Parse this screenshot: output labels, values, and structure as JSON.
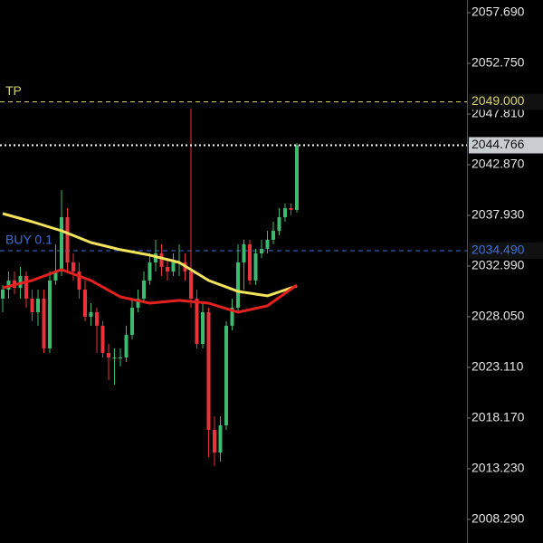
{
  "chart_data": {
    "type": "candlestick",
    "ylim": [
      2005.99,
      2058.925
    ],
    "yticks": [
      {
        "value": 2057.69,
        "label": "2057.690"
      },
      {
        "value": 2052.75,
        "label": "2052.750"
      },
      {
        "value": 2047.81,
        "label": "2047.810"
      },
      {
        "value": 2042.87,
        "label": "2042.870"
      },
      {
        "value": 2037.93,
        "label": "2037.930"
      },
      {
        "value": 2032.99,
        "label": "2032.990"
      },
      {
        "value": 2028.05,
        "label": "2028.050"
      },
      {
        "value": 2023.11,
        "label": "2023.110"
      },
      {
        "value": 2018.17,
        "label": "2018.170"
      },
      {
        "value": 2013.23,
        "label": "2013.230"
      },
      {
        "value": 2008.29,
        "label": "2008.290"
      }
    ],
    "up_color": "#3dba6f",
    "down_color": "#e8333a",
    "candles": {
      "open": [
        2029.81,
        2030.69,
        2031.58,
        2030.87,
        2032.02,
        2029.81,
        2028.49,
        2029.81,
        2024.96,
        2031.58,
        2032.46,
        2037.75,
        2033.34,
        2032.46,
        2030.69,
        2028.05,
        2028.49,
        2027.17,
        2024.52,
        2024.08,
        2024.08,
        2024.08,
        2026.28,
        2028.93,
        2029.81,
        2031.58,
        2033.34,
        2034.22,
        2032.9,
        2032.46,
        2033.34,
        2033.34,
        2032.46,
        2029.81,
        2025.4,
        2028.49,
        2017.02,
        2014.81,
        2017.46,
        2027.17,
        2028.93,
        2033.34,
        2035.11,
        2031.58,
        2034.22,
        2034.66,
        2035.55,
        2036.43,
        2037.75,
        2038.63,
        2038.46
      ],
      "high": [
        2031.14,
        2032.46,
        2032.46,
        2032.9,
        2032.46,
        2030.69,
        2030.69,
        2030.69,
        2032.46,
        2035.11,
        2040.4,
        2038.63,
        2034.22,
        2033.34,
        2031.58,
        2029.37,
        2028.93,
        2027.61,
        2025.4,
        2024.96,
        2024.96,
        2027.17,
        2029.81,
        2030.69,
        2032.46,
        2034.22,
        2035.55,
        2035.11,
        2033.78,
        2034.22,
        2035.11,
        2034.22,
        2048.34,
        2030.69,
        2029.37,
        2028.93,
        2018.34,
        2018.34,
        2027.61,
        2029.81,
        2035.11,
        2035.55,
        2035.55,
        2034.66,
        2035.55,
        2036.43,
        2037.31,
        2038.63,
        2039.08,
        2039.08,
        2044.99
      ],
      "low": [
        2028.49,
        2029.81,
        2030.25,
        2029.81,
        2028.93,
        2027.61,
        2027.17,
        2024.52,
        2024.52,
        2031.14,
        2032.02,
        2032.46,
        2031.58,
        2029.81,
        2027.61,
        2027.17,
        2024.52,
        2024.08,
        2021.87,
        2021.43,
        2023.2,
        2023.64,
        2025.84,
        2028.49,
        2029.37,
        2031.14,
        2032.46,
        2032.02,
        2031.58,
        2032.02,
        2032.02,
        2031.58,
        2028.93,
        2024.96,
        2024.96,
        2014.37,
        2013.49,
        2013.93,
        2017.02,
        2026.72,
        2028.49,
        2030.69,
        2031.14,
        2031.14,
        2033.78,
        2034.22,
        2035.11,
        2035.99,
        2037.31,
        2037.93,
        2038.19
      ],
      "close": [
        2030.69,
        2031.58,
        2030.87,
        2032.02,
        2029.81,
        2028.49,
        2029.81,
        2024.96,
        2031.58,
        2032.46,
        2037.75,
        2033.34,
        2032.46,
        2030.69,
        2028.05,
        2028.49,
        2027.17,
        2024.52,
        2024.08,
        2024.08,
        2024.08,
        2026.28,
        2028.93,
        2029.81,
        2031.58,
        2033.34,
        2034.22,
        2032.9,
        2032.46,
        2033.34,
        2033.34,
        2032.46,
        2029.81,
        2025.4,
        2028.49,
        2017.02,
        2014.81,
        2017.46,
        2027.17,
        2028.93,
        2033.34,
        2035.11,
        2031.58,
        2034.22,
        2034.66,
        2035.55,
        2036.43,
        2037.75,
        2038.63,
        2038.46,
        2044.77
      ]
    },
    "series": [
      {
        "color": "#f2e35a",
        "values": [
          2038.1,
          2037.31,
          2036.43,
          2035.28,
          2034.58,
          2034.05,
          2033.34,
          2031.58,
          2030.52,
          2030.08,
          2031.05
        ]
      },
      {
        "color": "#e3211f",
        "values": [
          2030.87,
          2031.58,
          2032.64,
          2031.58,
          2029.99,
          2029.37,
          2029.64,
          2029.37,
          2028.49,
          2029.11,
          2031.14
        ]
      }
    ],
    "levels": [
      {
        "name": "TP",
        "value": 2049.0,
        "label": "2049.000",
        "color": "#d8d46a"
      },
      {
        "name": "BUY 0.1",
        "value": 2034.49,
        "label": "2034.490",
        "color": "#3a6fd8"
      }
    ],
    "current_price": {
      "value": 2044.766,
      "label": "2044.766"
    }
  }
}
